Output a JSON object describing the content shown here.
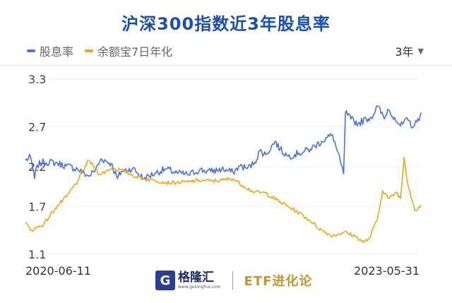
{
  "title": "沪深300指数近3年股息率",
  "range_selector": {
    "label": "3年"
  },
  "x_start_label": "2020-06-11",
  "x_end_label": "2023-05-31",
  "brand": {
    "name": "格隆汇",
    "url": "www.gelonghui.com",
    "tagline": "ETF进化论"
  },
  "colors": {
    "title": "#1b4fae",
    "dividend": "#4a72dd",
    "yuebao": "#f0a51e",
    "grid": "#eeeeee"
  },
  "chart_data": {
    "type": "line",
    "title": "沪深300指数近3年股息率",
    "x_range": [
      "2020-06-11",
      "2023-05-31"
    ],
    "ylim": [
      1.1,
      3.3
    ],
    "yticks": [
      1.1,
      1.7,
      2.2,
      2.7,
      3.3
    ],
    "grid": true,
    "legend": "top-left",
    "series": [
      {
        "name": "股息率",
        "color": "#4a72dd",
        "points": [
          [
            "2020-06-11",
            2.28
          ],
          [
            "2020-06-25",
            2.32
          ],
          [
            "2020-07-06",
            2.05
          ],
          [
            "2020-07-13",
            2.22
          ],
          [
            "2020-08-01",
            2.26
          ],
          [
            "2020-09-01",
            2.25
          ],
          [
            "2020-10-01",
            2.21
          ],
          [
            "2020-11-01",
            2.17
          ],
          [
            "2020-12-01",
            2.08
          ],
          [
            "2020-12-20",
            2.16
          ],
          [
            "2021-01-05",
            2.3
          ],
          [
            "2021-02-01",
            2.24
          ],
          [
            "2021-02-18",
            2.05
          ],
          [
            "2021-03-01",
            2.14
          ],
          [
            "2021-04-01",
            2.18
          ],
          [
            "2021-05-01",
            2.05
          ],
          [
            "2021-06-01",
            2.12
          ],
          [
            "2021-07-01",
            2.17
          ],
          [
            "2021-08-01",
            2.12
          ],
          [
            "2021-09-01",
            2.1
          ],
          [
            "2021-10-01",
            2.16
          ],
          [
            "2021-11-01",
            2.14
          ],
          [
            "2021-12-01",
            2.17
          ],
          [
            "2022-01-01",
            2.13
          ],
          [
            "2022-01-20",
            2.21
          ],
          [
            "2022-02-10",
            2.18
          ],
          [
            "2022-03-01",
            2.25
          ],
          [
            "2022-03-15",
            2.4
          ],
          [
            "2022-04-01",
            2.35
          ],
          [
            "2022-04-26",
            2.52
          ],
          [
            "2022-05-10",
            2.42
          ],
          [
            "2022-06-01",
            2.33
          ],
          [
            "2022-07-01",
            2.37
          ],
          [
            "2022-08-01",
            2.42
          ],
          [
            "2022-09-01",
            2.52
          ],
          [
            "2022-10-01",
            2.6
          ],
          [
            "2022-10-31",
            2.11
          ],
          [
            "2022-11-05",
            2.88
          ],
          [
            "2022-11-20",
            2.8
          ],
          [
            "2022-12-10",
            2.74
          ],
          [
            "2023-01-01",
            2.8
          ],
          [
            "2023-01-15",
            2.82
          ],
          [
            "2023-02-01",
            2.96
          ],
          [
            "2023-02-20",
            2.8
          ],
          [
            "2023-03-01",
            2.92
          ],
          [
            "2023-03-20",
            2.82
          ],
          [
            "2023-04-05",
            2.71
          ],
          [
            "2023-04-25",
            2.79
          ],
          [
            "2023-05-10",
            2.7
          ],
          [
            "2023-05-20",
            2.76
          ],
          [
            "2023-05-31",
            2.88
          ]
        ]
      },
      {
        "name": "余额宝7日年化",
        "color": "#f0a51e",
        "points": [
          [
            "2020-06-11",
            1.5
          ],
          [
            "2020-06-25",
            1.4
          ],
          [
            "2020-07-10",
            1.43
          ],
          [
            "2020-08-01",
            1.48
          ],
          [
            "2020-09-01",
            1.68
          ],
          [
            "2020-10-01",
            1.82
          ],
          [
            "2020-11-01",
            2.02
          ],
          [
            "2020-12-01",
            2.28
          ],
          [
            "2020-12-20",
            2.18
          ],
          [
            "2021-01-01",
            2.1
          ],
          [
            "2021-02-01",
            2.18
          ],
          [
            "2021-03-01",
            2.16
          ],
          [
            "2021-04-01",
            2.09
          ],
          [
            "2021-05-01",
            2.05
          ],
          [
            "2021-06-01",
            2.03
          ],
          [
            "2021-07-01",
            2.0
          ],
          [
            "2021-08-01",
            2.0
          ],
          [
            "2021-09-01",
            2.01
          ],
          [
            "2021-10-01",
            2.03
          ],
          [
            "2021-11-01",
            2.02
          ],
          [
            "2021-12-01",
            2.03
          ],
          [
            "2022-01-01",
            2.05
          ],
          [
            "2022-02-01",
            1.95
          ],
          [
            "2022-03-01",
            1.88
          ],
          [
            "2022-04-01",
            1.87
          ],
          [
            "2022-05-01",
            1.78
          ],
          [
            "2022-06-01",
            1.7
          ],
          [
            "2022-07-01",
            1.62
          ],
          [
            "2022-08-01",
            1.52
          ],
          [
            "2022-09-01",
            1.4
          ],
          [
            "2022-10-01",
            1.33
          ],
          [
            "2022-11-01",
            1.38
          ],
          [
            "2022-12-01",
            1.33
          ],
          [
            "2022-12-25",
            1.25
          ],
          [
            "2023-01-10",
            1.3
          ],
          [
            "2023-02-01",
            1.55
          ],
          [
            "2023-02-15",
            1.9
          ],
          [
            "2023-03-05",
            1.8
          ],
          [
            "2023-03-25",
            1.88
          ],
          [
            "2023-04-05",
            1.8
          ],
          [
            "2023-04-15",
            2.32
          ],
          [
            "2023-04-22",
            2.05
          ],
          [
            "2023-04-30",
            1.9
          ],
          [
            "2023-05-15",
            1.65
          ],
          [
            "2023-05-31",
            1.72
          ]
        ]
      }
    ]
  }
}
